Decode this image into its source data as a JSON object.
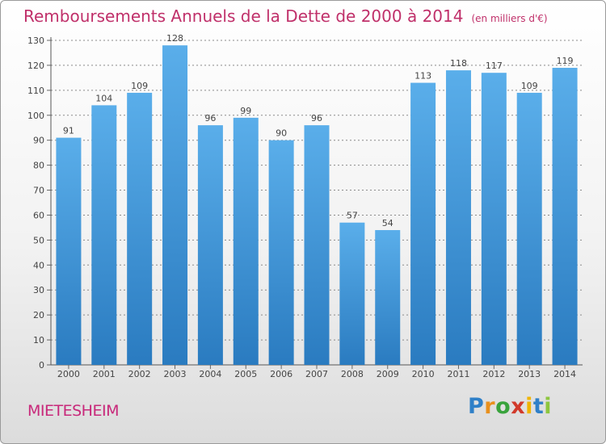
{
  "header": {
    "title": "Remboursements Annuels de la Dette de 2000 à 2014",
    "unit": "(en milliers d'€)"
  },
  "footer": {
    "place": "MIETESHEIM",
    "logo": "Proxiti"
  },
  "colors": {
    "bar_light": "#5aaeea",
    "bar_dark": "#2a7bc0",
    "title": "#c0306a"
  },
  "chart_data": {
    "type": "bar",
    "title": "Remboursements Annuels de la Dette de 2000 à 2014",
    "ylabel": "en milliers d'€",
    "xlabel": "",
    "ylim": [
      0,
      130
    ],
    "yticks": [
      0,
      10,
      20,
      30,
      40,
      50,
      60,
      70,
      80,
      90,
      100,
      110,
      120,
      130
    ],
    "grid": true,
    "categories": [
      "2000",
      "2001",
      "2002",
      "2003",
      "2004",
      "2005",
      "2006",
      "2007",
      "2008",
      "2009",
      "2010",
      "2011",
      "2012",
      "2013",
      "2014"
    ],
    "values": [
      91,
      104,
      109,
      128,
      96,
      99,
      90,
      96,
      57,
      54,
      113,
      118,
      117,
      109,
      119
    ]
  }
}
